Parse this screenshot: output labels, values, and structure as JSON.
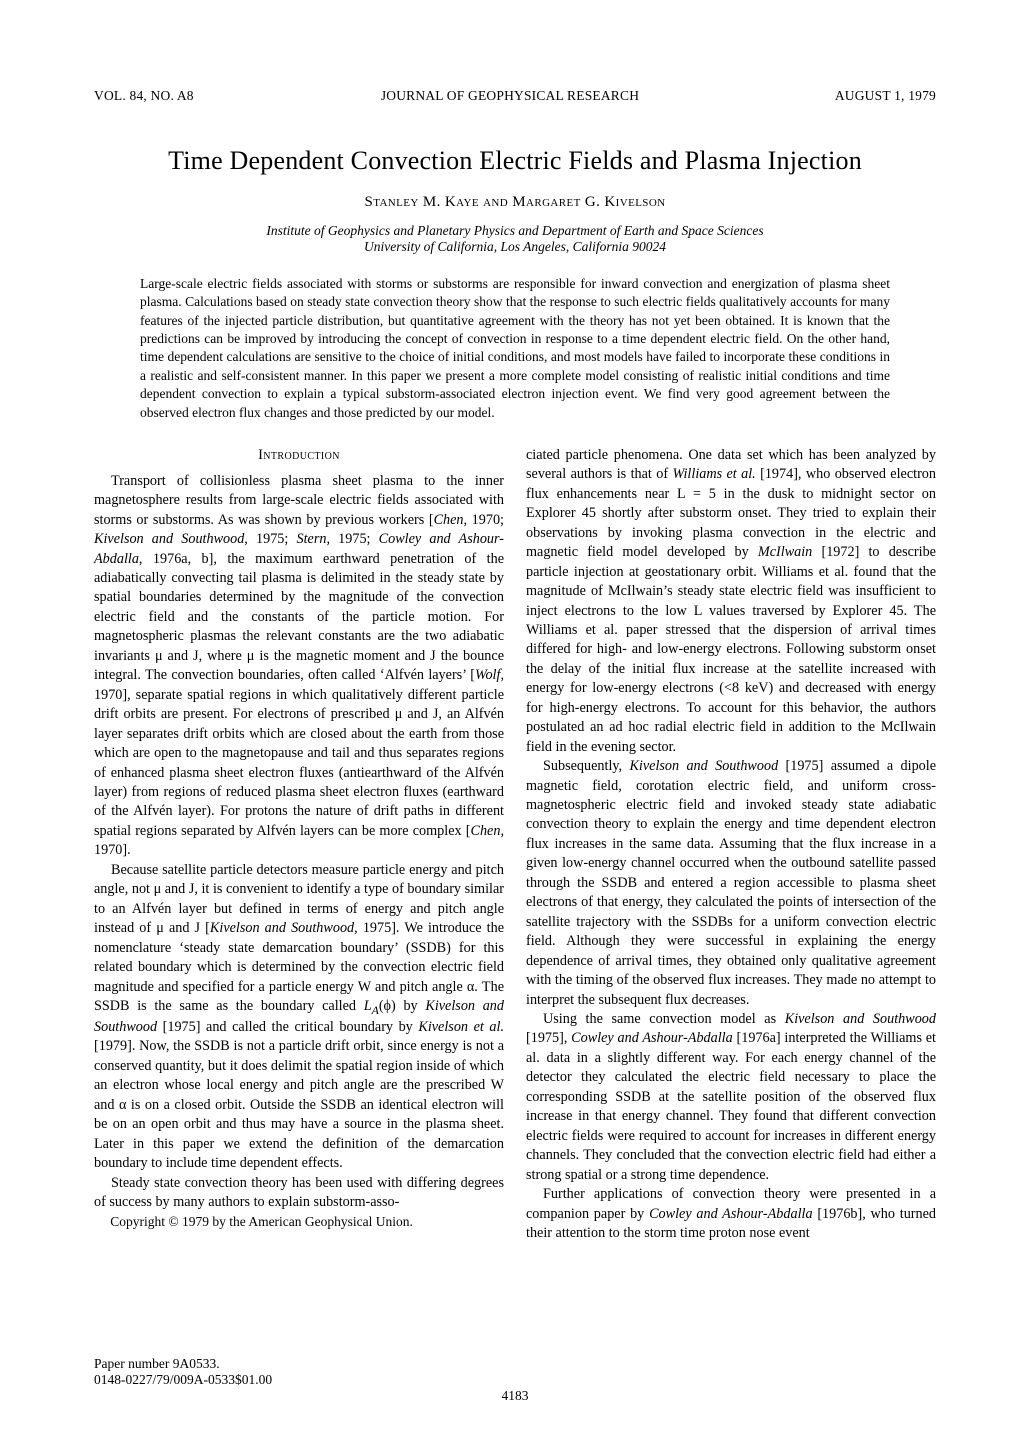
{
  "header": {
    "left": "VOL. 84, NO. A8",
    "center": "JOURNAL OF GEOPHYSICAL RESEARCH",
    "right": "AUGUST 1, 1979"
  },
  "title": "Time Dependent Convection Electric Fields and Plasma Injection",
  "authors": "Stanley M. Kaye and Margaret G. Kivelson",
  "affiliation_line1": "Institute of Geophysics and Planetary Physics and Department of Earth and Space Sciences",
  "affiliation_line2": "University of California, Los Angeles, California 90024",
  "abstract": "Large-scale electric fields associated with storms or substorms are responsible for inward convection and energization of plasma sheet plasma. Calculations based on steady state convection theory show that the response to such electric fields qualitatively accounts for many features of the injected particle distribution, but quantitative agreement with the theory has not yet been obtained. It is known that the predictions can be improved by introducing the concept of convection in response to a time dependent electric field. On the other hand, time dependent calculations are sensitive to the choice of initial conditions, and most models have failed to incorporate these conditions in a realistic and self-consistent manner. In this paper we present a more complete model consisting of realistic initial conditions and time dependent convection to explain a typical substorm-associated electron injection event. We find very good agreement between the observed electron flux changes and those predicted by our model.",
  "section_heading": "Introduction",
  "col1": {
    "p1a": "Transport of collisionless plasma sheet plasma to the inner magnetosphere results from large-scale electric fields associated with storms or substorms. As was shown by previous workers [",
    "p1_ref1": "Chen,",
    "p1a2": " 1970; ",
    "p1_ref2": "Kivelson and Southwood,",
    "p1a3": " 1975; ",
    "p1_ref3": "Stern,",
    "p1a4": " 1975; ",
    "p1_ref4": "Cowley and Ashour-Abdalla,",
    "p1a5": " 1976a, b], the maximum earthward penetration of the adiabatically convecting tail plasma is delimited in the steady state by spatial boundaries determined by the magnitude of the convection electric field and the constants of the particle motion. For magnetospheric plasmas the relevant constants are the two adiabatic invariants μ and J, where μ is the magnetic moment and J the bounce integral. The convection boundaries, often called ‘Alfvén layers’ [",
    "p1_ref5": "Wolf,",
    "p1a6": " 1970], separate spatial regions in which qualitatively different particle drift orbits are present. For electrons of prescribed μ and J, an Alfvén layer separates drift orbits which are closed about the earth from those which are open to the magnetopause and tail and thus separates regions of enhanced plasma sheet electron fluxes (antiearthward of the Alfvén layer) from regions of reduced plasma sheet electron fluxes (earthward of the Alfvén layer). For protons the nature of drift paths in different spatial regions separated by Alfvén layers can be more complex [",
    "p1_ref6": "Chen,",
    "p1a7": " 1970].",
    "p2a": "Because satellite particle detectors measure particle energy and pitch angle, not μ and J, it is convenient to identify a type of boundary similar to an Alfvén layer but defined in terms of energy and pitch angle instead of μ and J [",
    "p2_ref1": "Kivelson and Southwood,",
    "p2a2": " 1975]. We introduce the nomenclature ‘steady state demarcation boundary’ (SSDB) for this related boundary which is determined by the convection electric field magnitude and specified for a particle energy W and pitch angle α. The SSDB is the same as the boundary called ",
    "p2_math": "L",
    "p2_sub": "A",
    "p2a3": "(ϕ) by ",
    "p2_ref2": "Kivelson and Southwood",
    "p2a4": " [1975] and called the critical boundary by ",
    "p2_ref3": "Kivelson et al.",
    "p2a5": " [1979]. Now, the SSDB is not a particle drift orbit, since energy is not a conserved quantity, but it does delimit the spatial region inside of which an electron whose local energy and pitch angle are the prescribed W and α is on a closed orbit. Outside the SSDB an identical electron will be on an open orbit and thus may have a source in the plasma sheet. Later in this paper we extend the definition of the demarcation boundary to include time dependent effects.",
    "p3": "Steady state convection theory has been used with differing degrees of success by many authors to explain substorm-asso-"
  },
  "col2": {
    "p1a": "ciated particle phenomena. One data set which has been analyzed by several authors is that of ",
    "p1_ref1": "Williams et al.",
    "p1a2": " [1974], who observed electron flux enhancements near L = 5 in the dusk to midnight sector on Explorer 45 shortly after substorm onset. They tried to explain their observations by invoking plasma convection in the electric and magnetic field model developed by ",
    "p1_ref2": "McIlwain",
    "p1a3": " [1972] to describe particle injection at geostationary orbit. Williams et al. found that the magnitude of McIlwain’s steady state electric field was insufficient to inject electrons to the low L values traversed by Explorer 45. The Williams et al. paper stressed that the dispersion of arrival times differed for high- and low-energy electrons. Following substorm onset the delay of the initial flux increase at the satellite increased with energy for low-energy electrons (<8 keV) and decreased with energy for high-energy electrons. To account for this behavior, the authors postulated an ad hoc radial electric field in addition to the McIlwain field in the evening sector.",
    "p2a": "Subsequently, ",
    "p2_ref1": "Kivelson and Southwood",
    "p2a2": " [1975] assumed a dipole magnetic field, corotation electric field, and uniform cross-magnetospheric electric field and invoked steady state adiabatic convection theory to explain the energy and time dependent electron flux increases in the same data. Assuming that the flux increase in a given low-energy channel occurred when the outbound satellite passed through the SSDB and entered a region accessible to plasma sheet electrons of that energy, they calculated the points of intersection of the satellite trajectory with the SSDBs for a uniform convection electric field. Although they were successful in explaining the energy dependence of arrival times, they obtained only qualitative agreement with the timing of the observed flux increases. They made no attempt to interpret the subsequent flux decreases.",
    "p3a": "Using the same convection model as ",
    "p3_ref1": "Kivelson and Southwood",
    "p3a2": " [1975], ",
    "p3_ref2": "Cowley and Ashour-Abdalla",
    "p3a3": " [1976a] interpreted the Williams et al. data in a slightly different way. For each energy channel of the detector they calculated the electric field necessary to place the corresponding SSDB at the satellite position of the observed flux increase in that energy channel. They found that different convection electric fields were required to account for increases in different energy channels. They concluded that the convection electric field had either a strong spatial or a strong time dependence.",
    "p4a": "Further applications of convection theory were presented in a companion paper by ",
    "p4_ref1": "Cowley and Ashour-Abdalla",
    "p4a2": " [1976b], who turned their attention to the storm time proton nose event"
  },
  "copyright": "Copyright © 1979 by the American Geophysical Union.",
  "footer": {
    "paper_number": "Paper number 9A0533.",
    "code": "0148-0227/79/009A-0533$01.00",
    "page_number": "4183"
  }
}
